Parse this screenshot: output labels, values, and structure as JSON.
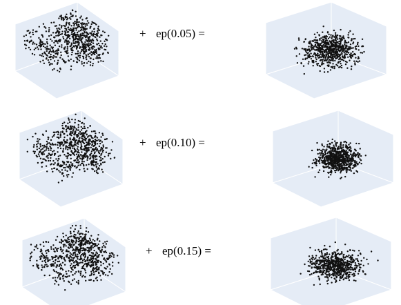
{
  "rows": [
    {
      "operator": "+",
      "label": "ep(0.05) ="
    },
    {
      "operator": "+",
      "label": "ep(0.10) ="
    },
    {
      "operator": "+",
      "label": "ep(0.15) ="
    }
  ]
}
